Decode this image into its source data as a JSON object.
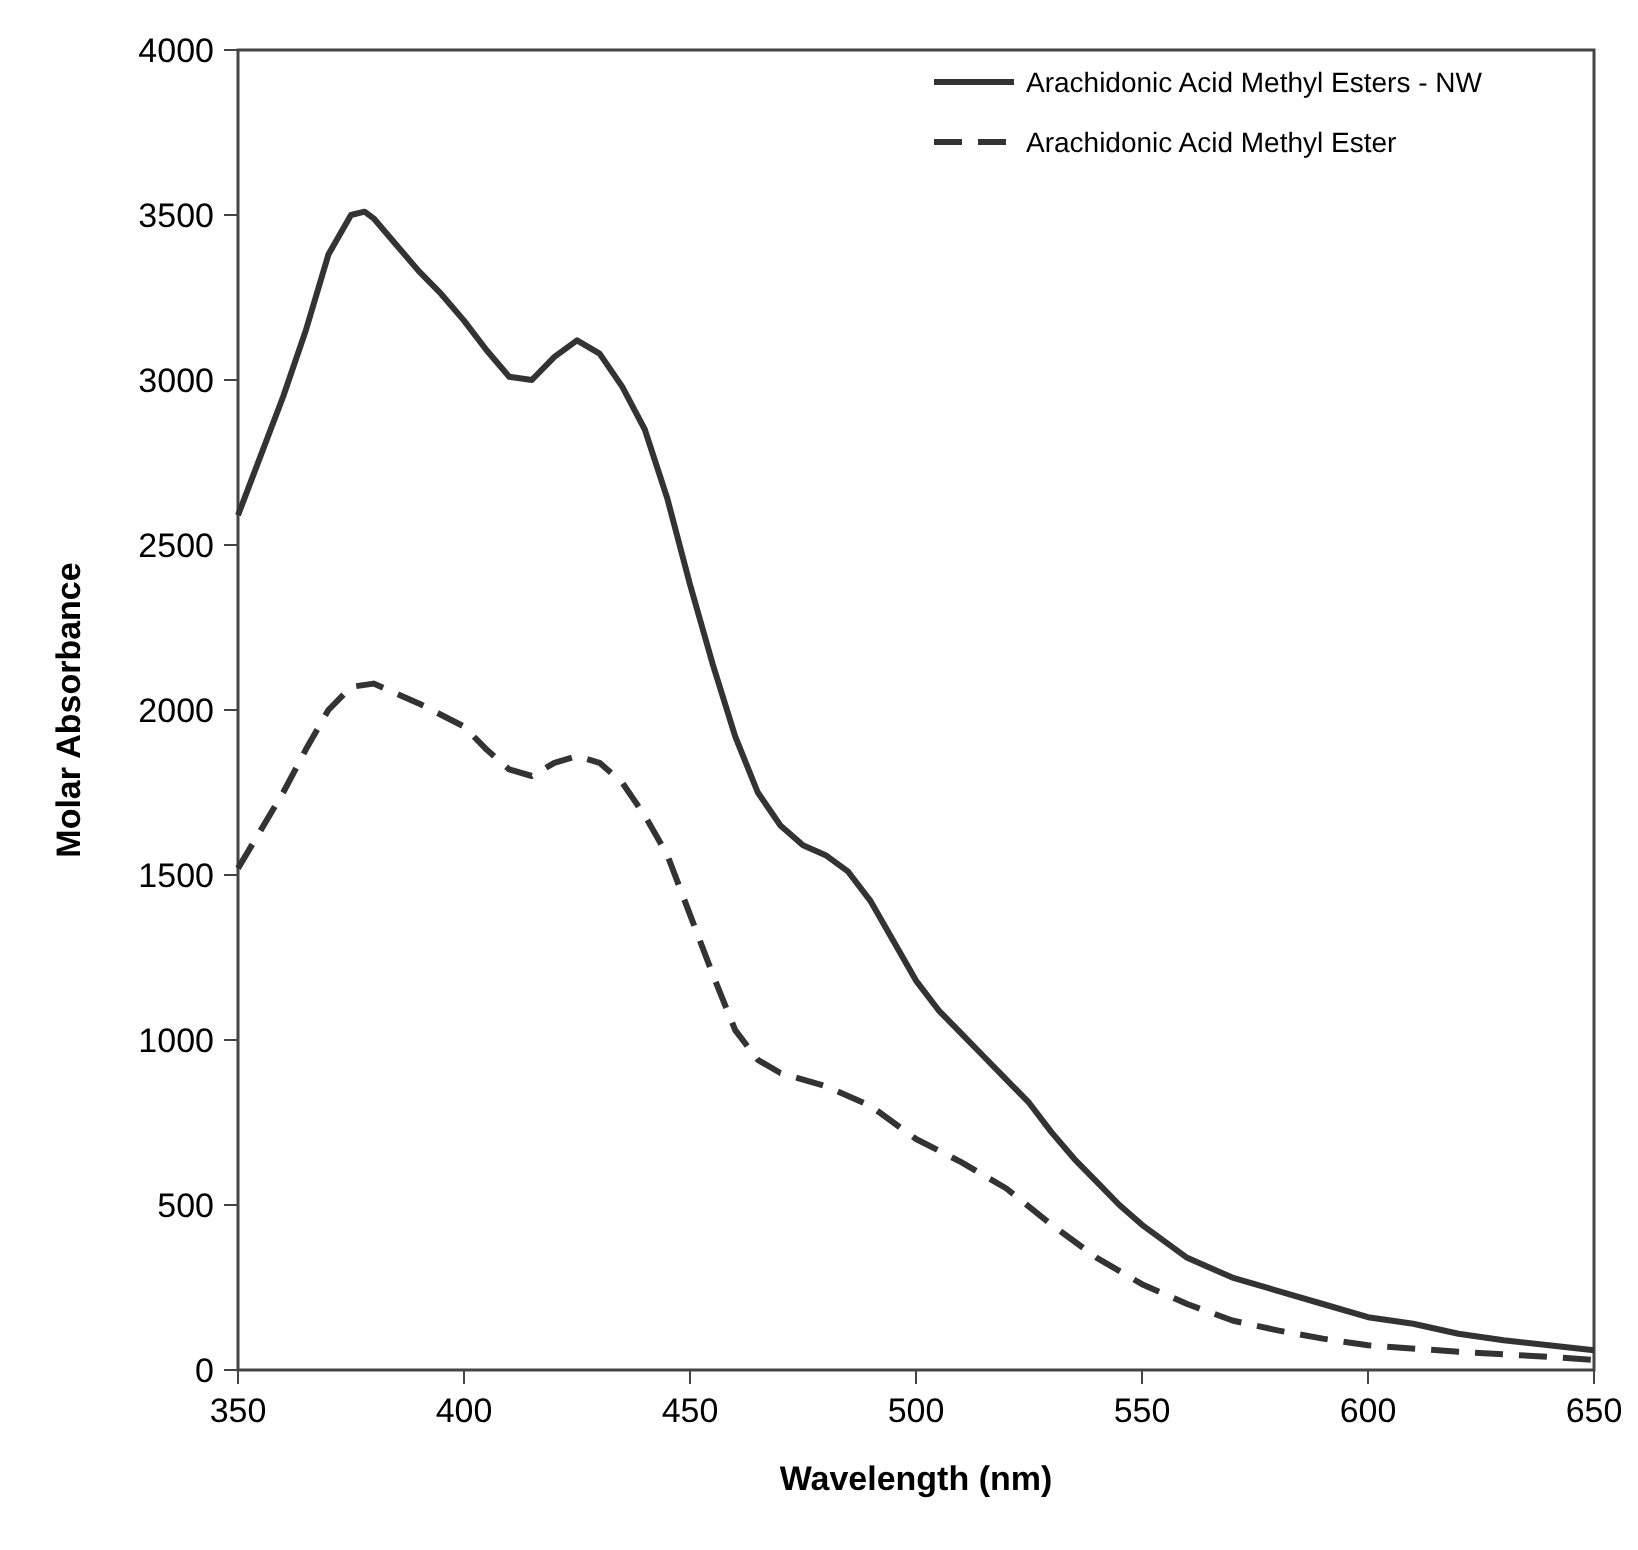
{
  "chart_data": {
    "type": "line",
    "xlabel": "Wavelength (nm)",
    "ylabel": "Molar Absorbance",
    "xlim": [
      350,
      650
    ],
    "ylim": [
      0,
      4000
    ],
    "xticks": [
      350,
      400,
      450,
      500,
      550,
      600,
      650
    ],
    "yticks": [
      0,
      500,
      1000,
      1500,
      2000,
      2500,
      3000,
      3500,
      4000
    ],
    "grid": false,
    "legend": "top right",
    "series": [
      {
        "name": "Arachidonic Acid Methyl Esters - NW",
        "color": "#333333",
        "line_style": "solid",
        "x": [
          350,
          360,
          365,
          370,
          375,
          378,
          380,
          385,
          390,
          395,
          400,
          405,
          410,
          415,
          420,
          425,
          430,
          435,
          440,
          445,
          450,
          455,
          460,
          465,
          470,
          475,
          480,
          485,
          490,
          495,
          500,
          505,
          510,
          515,
          520,
          525,
          530,
          535,
          540,
          545,
          550,
          555,
          560,
          570,
          580,
          590,
          600,
          610,
          620,
          630,
          640,
          650
        ],
        "values": [
          2590,
          2950,
          3150,
          3380,
          3500,
          3510,
          3490,
          3410,
          3330,
          3260,
          3180,
          3090,
          3010,
          3000,
          3070,
          3120,
          3080,
          2980,
          2850,
          2640,
          2380,
          2140,
          1920,
          1750,
          1650,
          1590,
          1560,
          1510,
          1420,
          1300,
          1180,
          1090,
          1020,
          950,
          880,
          810,
          720,
          640,
          570,
          500,
          440,
          390,
          340,
          280,
          240,
          200,
          160,
          140,
          110,
          90,
          75,
          60
        ]
      },
      {
        "name": "Arachidonic Acid Methyl Ester",
        "color": "#333333",
        "line_style": "dashed",
        "x": [
          350,
          360,
          365,
          370,
          375,
          380,
          390,
          400,
          405,
          410,
          415,
          420,
          425,
          430,
          435,
          440,
          445,
          450,
          455,
          460,
          465,
          470,
          480,
          490,
          500,
          510,
          520,
          530,
          540,
          550,
          560,
          570,
          580,
          590,
          600,
          620,
          640,
          650
        ],
        "values": [
          1520,
          1750,
          1880,
          2000,
          2070,
          2080,
          2020,
          1950,
          1880,
          1820,
          1800,
          1840,
          1860,
          1840,
          1780,
          1680,
          1560,
          1380,
          1200,
          1030,
          940,
          900,
          860,
          800,
          700,
          630,
          550,
          440,
          340,
          260,
          200,
          150,
          120,
          95,
          75,
          55,
          40,
          30
        ]
      }
    ]
  }
}
